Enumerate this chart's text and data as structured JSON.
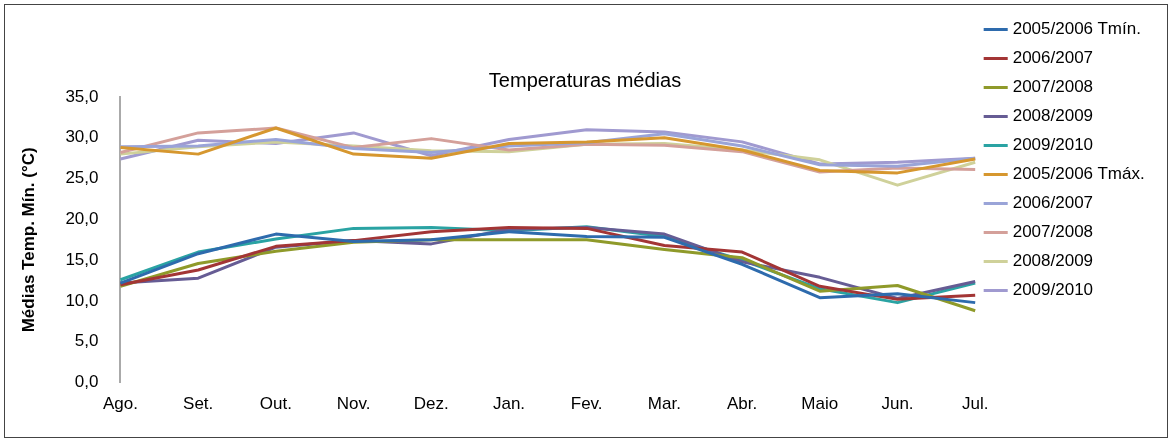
{
  "chart_data": {
    "type": "line",
    "title": "Temperaturas médias",
    "ylabel": "Médias Temp. Mín. (°C)",
    "categories": [
      "Ago.",
      "Set.",
      "Out.",
      "Nov.",
      "Dez.",
      "Jan.",
      "Fev.",
      "Mar.",
      "Abr.",
      "Maio",
      "Jun.",
      "Jul."
    ],
    "ylim": [
      0,
      35
    ],
    "yticks": [
      {
        "value": 0,
        "label": "0,0"
      },
      {
        "value": 5,
        "label": "5,0"
      },
      {
        "value": 10,
        "label": "10,0"
      },
      {
        "value": 15,
        "label": "15,0"
      },
      {
        "value": 20,
        "label": "20,0"
      },
      {
        "value": 25,
        "label": "25,0"
      },
      {
        "value": 30,
        "label": "30,0"
      },
      {
        "value": 35,
        "label": "35,0"
      }
    ],
    "grid": false,
    "legend": "right",
    "marker": "none",
    "line_style": "solid",
    "series": [
      {
        "name": "2005/2006 Tmín.",
        "color": "#2e6bad",
        "values": [
          12.2,
          15.8,
          18.2,
          17.3,
          17.5,
          18.5,
          17.9,
          17.8,
          14.5,
          10.4,
          10.9,
          9.8
        ]
      },
      {
        "name": "2006/2007",
        "color": "#a33535",
        "values": [
          12.0,
          13.8,
          16.7,
          17.4,
          18.5,
          19.0,
          18.9,
          16.8,
          16.0,
          11.8,
          10.2,
          10.7
        ]
      },
      {
        "name": "2007/2008",
        "color": "#8f9a2a",
        "values": [
          11.8,
          14.6,
          16.1,
          17.2,
          17.5,
          17.5,
          17.5,
          16.3,
          15.3,
          11.2,
          11.9,
          8.8
        ]
      },
      {
        "name": "2008/2009",
        "color": "#665c94",
        "values": [
          12.2,
          12.8,
          16.6,
          17.4,
          17.0,
          18.8,
          19.0,
          18.2,
          14.8,
          12.9,
          10.3,
          12.4
        ]
      },
      {
        "name": "2009/2010",
        "color": "#2aa3a3",
        "values": [
          12.6,
          16.0,
          17.6,
          18.9,
          19.0,
          18.6,
          19.1,
          17.9,
          15.0,
          11.5,
          9.8,
          12.2
        ]
      },
      {
        "name": "2005/2006 Tmáx.",
        "color": "#d6972f",
        "values": [
          28.8,
          28.0,
          31.2,
          28.0,
          27.5,
          29.3,
          29.5,
          30.0,
          28.5,
          26.0,
          25.7,
          27.4
        ]
      },
      {
        "name": "2006/2007",
        "color": "#9aa4d8",
        "values": [
          28.9,
          29.0,
          29.8,
          28.7,
          28.2,
          29.0,
          29.4,
          30.5,
          29.0,
          26.7,
          26.5,
          27.5
        ]
      },
      {
        "name": "2007/2008",
        "color": "#d4a09a",
        "values": [
          28.2,
          30.6,
          31.2,
          28.8,
          29.9,
          28.5,
          29.2,
          29.1,
          28.3,
          25.8,
          26.3,
          26.1
        ]
      },
      {
        "name": "2008/2009",
        "color": "#cfd19a",
        "values": [
          28.0,
          28.9,
          29.5,
          29.0,
          28.4,
          28.3,
          29.2,
          29.3,
          28.5,
          27.3,
          24.2,
          27.0
        ]
      },
      {
        "name": "2009/2010",
        "color": "#a09ad0",
        "values": [
          27.4,
          29.7,
          29.3,
          30.6,
          27.8,
          29.8,
          31.0,
          30.7,
          29.5,
          26.8,
          27.0,
          27.5
        ]
      }
    ]
  }
}
